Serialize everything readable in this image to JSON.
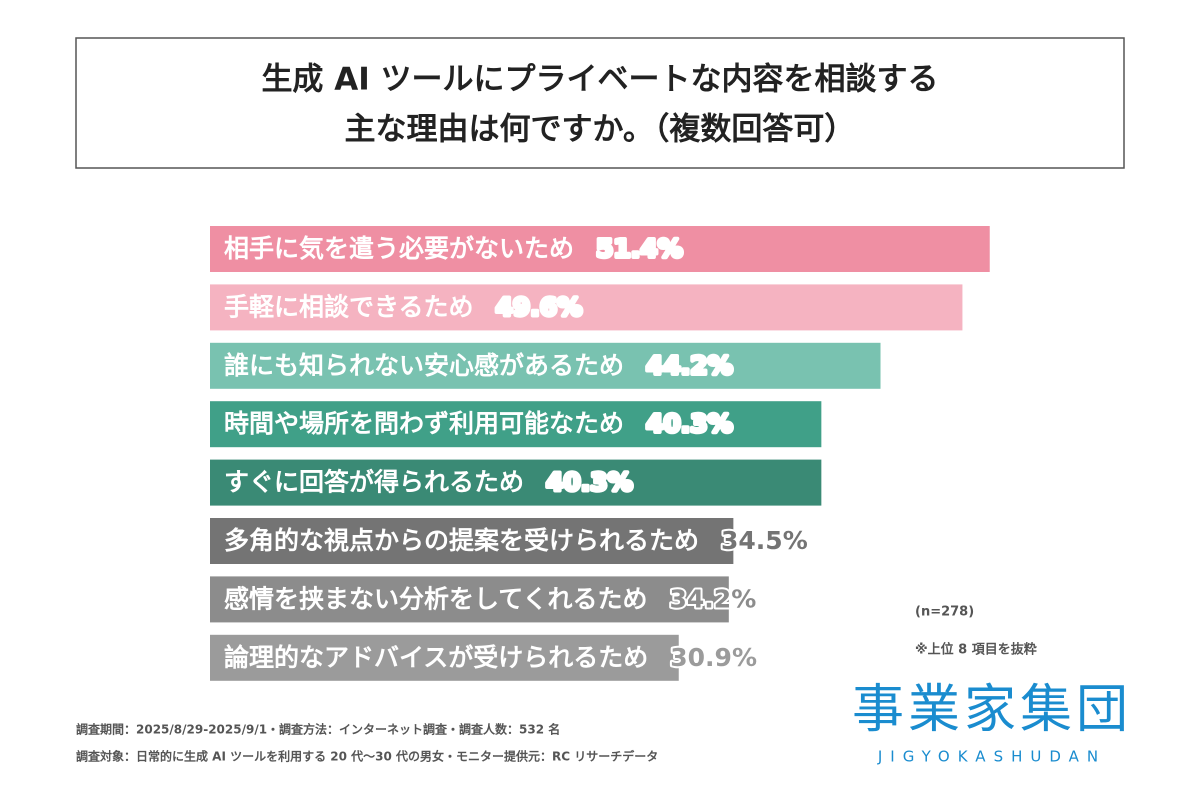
{
  "chart_data": {
    "type": "bar",
    "orientation": "horizontal",
    "title": [
      "生成 AI ツールにプライベートな内容を相談する",
      "主な理由は何ですか。（複数回答可）"
    ],
    "categories": [
      "相手に気を遣う必要がないため",
      "手軽に相談できるため",
      "誰にも知られない安心感があるため",
      "時間や場所を問わず利用可能なため",
      "すぐに回答が得られるため",
      "多角的な視点からの提案を受けられるため",
      "感情を挟まない分析をしてくれるため",
      "論理的なアドバイスが受けられるため"
    ],
    "values": [
      51.4,
      49.6,
      44.2,
      40.3,
      40.3,
      34.5,
      34.2,
      30.9
    ],
    "value_labels": [
      "51.4%",
      "49.6%",
      "44.2%",
      "40.3%",
      "40.3%",
      "34.5%",
      "34.2%",
      "30.9%"
    ],
    "colors": [
      "#ef8fa3",
      "#f5b3c1",
      "#79c2b0",
      "#40a088",
      "#3a8a75",
      "#747474",
      "#8c8c8c",
      "#9b9b9b"
    ],
    "value_label_colors": [
      "#ffffff",
      "#ffffff",
      "#ffffff",
      "#ffffff",
      "#ffffff",
      "#747474",
      "#8c8c8c",
      "#9b9b9b"
    ],
    "sample_note": "(n=278)",
    "selection_note": "※上位 8 項目を抜粋",
    "footnotes": [
      "調査期間：2025/8/29-2025/9/1・調査方法：インターネット調査・調査人数：532 名",
      "調査対象：日常的に生成 AI ツールを利用する 20 代〜30 代の男女・モニター提供元：RC リサーチデータ"
    ],
    "logo": "事業家集団",
    "logo_romaji": "JIGYOKASHUDAN"
  }
}
